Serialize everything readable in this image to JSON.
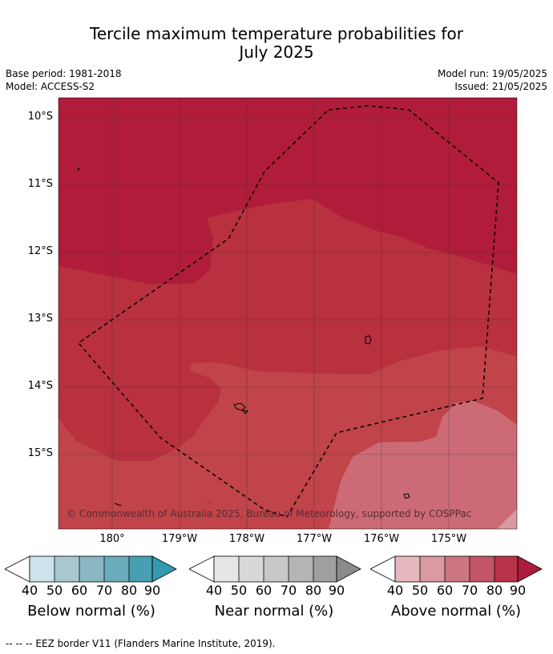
{
  "title_line1": "Tercile maximum temperature probabilities for",
  "title_line2": "July 2025",
  "meta_left": [
    "Base period: 1981-2018",
    "Model: ACCESS-S2"
  ],
  "meta_right": [
    "Model run: 19/05/2025",
    "Issued: 21/05/2025"
  ],
  "map": {
    "lat_labels": [
      "10°S",
      "11°S",
      "12°S",
      "13°S",
      "14°S",
      "15°S"
    ],
    "lon_labels": [
      "180°",
      "179°W",
      "178°W",
      "177°W",
      "176°W",
      "175°W"
    ],
    "copyright": "© Commonwealth of Australia 2025, Bureau of Meteorology, supported by COSPPac",
    "dominant_category": "Above normal",
    "band_colors": [
      "#b01c3a",
      "#b9303f",
      "#c04449",
      "#cc6b75"
    ]
  },
  "colorbars": [
    {
      "label": "Below normal (%)",
      "ticks": [
        "40",
        "50",
        "60",
        "70",
        "80",
        "90"
      ],
      "colors": [
        "#cde2ea",
        "#a9c7d0",
        "#8ab7c4",
        "#6aacbc",
        "#46a0b2",
        "#3399ae"
      ]
    },
    {
      "label": "Near normal (%)",
      "ticks": [
        "40",
        "50",
        "60",
        "70",
        "80",
        "90"
      ],
      "colors": [
        "#e6e6e6",
        "#d8d8d8",
        "#c8c8c8",
        "#b5b5b5",
        "#a0a0a0",
        "#8a8a8a"
      ]
    },
    {
      "label": "Above normal (%)",
      "ticks": [
        "40",
        "50",
        "60",
        "70",
        "80",
        "90"
      ],
      "colors": [
        "#e4b8be",
        "#d99aa2",
        "#cc7580",
        "#c25666",
        "#b8324a",
        "#ac1c3c"
      ]
    }
  ],
  "footer": "--  --  -- EEZ border V11 (Flanders Marine Institute, 2019)."
}
